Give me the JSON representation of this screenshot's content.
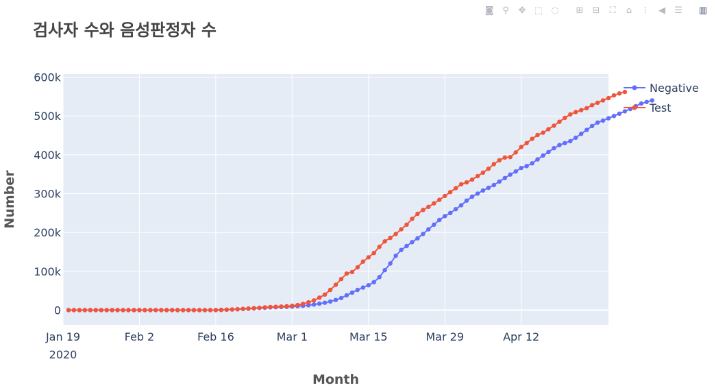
{
  "toolbar": {
    "buttons": [
      {
        "name": "camera-icon",
        "glyph": "◙"
      },
      {
        "name": "zoom-icon",
        "glyph": "⚲"
      },
      {
        "name": "pan-icon",
        "glyph": "✥"
      },
      {
        "name": "box-select-icon",
        "glyph": "⬚"
      },
      {
        "name": "lasso-select-icon",
        "glyph": "◌"
      },
      {
        "name": "zoom-in-icon",
        "glyph": "⊞"
      },
      {
        "name": "zoom-out-icon",
        "glyph": "⊟"
      },
      {
        "name": "autoscale-icon",
        "glyph": "⛶"
      },
      {
        "name": "reset-axes-icon",
        "glyph": "⌂"
      },
      {
        "name": "spike-lines-icon",
        "glyph": "⁝"
      },
      {
        "name": "hover-closest-icon",
        "glyph": "◀"
      },
      {
        "name": "hover-compare-icon",
        "glyph": "☰"
      },
      {
        "name": "plotly-logo-icon",
        "glyph": "▥"
      }
    ]
  },
  "chart_data": {
    "type": "line",
    "title": "검사자 수와 음성판정자 수",
    "xlabel": "Month",
    "ylabel": "Number",
    "x_start": "2020-01-20",
    "x_range": [
      "2020-01-19",
      "2020-04-28"
    ],
    "ylim": [
      -38000,
      608000
    ],
    "x_ticks": [
      {
        "date": "2020-01-19",
        "label": "Jan 19",
        "sublabel": "2020"
      },
      {
        "date": "2020-02-02",
        "label": "Feb 2",
        "sublabel": ""
      },
      {
        "date": "2020-02-16",
        "label": "Feb 16",
        "sublabel": ""
      },
      {
        "date": "2020-03-01",
        "label": "Mar 1",
        "sublabel": ""
      },
      {
        "date": "2020-03-15",
        "label": "Mar 15",
        "sublabel": ""
      },
      {
        "date": "2020-03-29",
        "label": "Mar 29",
        "sublabel": ""
      },
      {
        "date": "2020-04-12",
        "label": "Apr 12",
        "sublabel": ""
      }
    ],
    "y_ticks": [
      {
        "value": 0,
        "label": "0"
      },
      {
        "value": 100000,
        "label": "100k"
      },
      {
        "value": 200000,
        "label": "200k"
      },
      {
        "value": 300000,
        "label": "300k"
      },
      {
        "value": 400000,
        "label": "400k"
      },
      {
        "value": 500000,
        "label": "500k"
      },
      {
        "value": 600000,
        "label": "600k"
      }
    ],
    "grid": true,
    "legend": "top-right",
    "series": [
      {
        "name": "Negative",
        "color": "#636efa",
        "values": [
          0,
          0,
          0,
          0,
          0,
          0,
          0,
          0,
          0,
          0,
          0,
          0,
          0,
          0,
          0,
          0,
          0,
          0,
          0,
          0,
          0,
          0,
          0,
          0,
          0,
          0,
          0,
          0,
          500,
          1000,
          1500,
          2000,
          2700,
          3500,
          4300,
          5200,
          6000,
          7000,
          7500,
          8000,
          8500,
          9000,
          10000,
          11000,
          12500,
          14500,
          16500,
          19000,
          22000,
          26000,
          31000,
          38000,
          45000,
          52000,
          58000,
          64000,
          72000,
          85000,
          103000,
          120000,
          140000,
          155000,
          165000,
          175000,
          185000,
          196000,
          208000,
          220000,
          232000,
          242000,
          250000,
          260000,
          270000,
          282000,
          292000,
          300000,
          308000,
          315000,
          322000,
          331000,
          340000,
          349000,
          357000,
          366000,
          371000,
          378000,
          388000,
          398000,
          407000,
          417000,
          425000,
          430000,
          435000,
          444000,
          454000,
          464000,
          474000,
          483000,
          488000,
          494000,
          500000,
          506000,
          512000,
          518000,
          525000,
          532000,
          536000,
          540000
        ]
      },
      {
        "name": "Test",
        "color": "#ef553b",
        "values": [
          0,
          0,
          0,
          0,
          0,
          0,
          0,
          0,
          0,
          0,
          0,
          0,
          0,
          0,
          0,
          0,
          0,
          0,
          0,
          0,
          0,
          0,
          0,
          0,
          0,
          0,
          0,
          0,
          600,
          1200,
          1800,
          2500,
          3300,
          4200,
          5100,
          6000,
          7000,
          8000,
          8600,
          9200,
          10000,
          11000,
          13000,
          16000,
          20000,
          25000,
          32000,
          40000,
          52000,
          65000,
          80000,
          94000,
          98000,
          110000,
          125000,
          136000,
          147000,
          163000,
          177000,
          186000,
          196000,
          208000,
          220000,
          235000,
          248000,
          258000,
          266000,
          275000,
          284000,
          294000,
          304000,
          314000,
          324000,
          329000,
          336000,
          345000,
          354000,
          364000,
          376000,
          386000,
          393000,
          394000,
          406000,
          420000,
          430000,
          441000,
          451000,
          457000,
          466000,
          475000,
          485000,
          495000,
          504000,
          510000,
          515000,
          520000,
          528000,
          534000,
          540000,
          546000,
          553000,
          558000,
          562000
        ]
      }
    ]
  }
}
